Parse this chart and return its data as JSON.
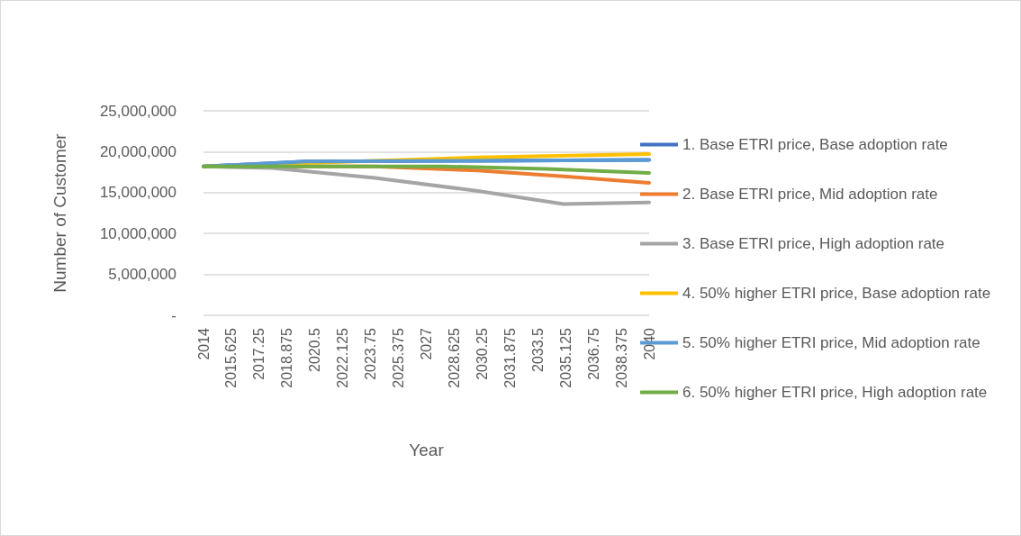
{
  "chart_data": {
    "type": "line",
    "xlabel": "Year",
    "ylabel": "Number of Customer",
    "xlim": [
      2014,
      2040
    ],
    "xticks": [
      2014,
      2015.625,
      2017.25,
      2018.875,
      2020.5,
      2022.125,
      2023.75,
      2025.375,
      2027,
      2028.625,
      2030.25,
      2031.875,
      2033.5,
      2035.125,
      2036.75,
      2038.375,
      2040
    ],
    "ylim": [
      0,
      25000000
    ],
    "yticks": [
      {
        "value": 0,
        "label": "-"
      },
      {
        "value": 5000000,
        "label": "5,000,000"
      },
      {
        "value": 10000000,
        "label": "10,000,000"
      },
      {
        "value": 15000000,
        "label": "15,000,000"
      },
      {
        "value": 20000000,
        "label": "20,000,000"
      },
      {
        "value": 25000000,
        "label": "25,000,000"
      }
    ],
    "grid": "y",
    "legend": "right",
    "marker": "none",
    "line_style": "solid",
    "series": [
      {
        "name": "1. Base ETRI price, Base adoption rate",
        "color": "#4472c4",
        "x": [
          2014,
          2020,
          2030,
          2040
        ],
        "values": [
          18200000,
          18800000,
          18900000,
          19000000
        ]
      },
      {
        "name": "2. Base ETRI price, Mid adoption rate",
        "color": "#ed7d31",
        "x": [
          2014,
          2024,
          2030,
          2035,
          2040
        ],
        "values": [
          18200000,
          18200000,
          17700000,
          17000000,
          16200000
        ]
      },
      {
        "name": "3. Base ETRI price, High adoption rate",
        "color": "#a5a5a5",
        "x": [
          2014,
          2018,
          2024,
          2030,
          2035,
          2040
        ],
        "values": [
          18200000,
          18000000,
          16800000,
          15200000,
          13600000,
          13800000
        ]
      },
      {
        "name": "4. 50% higher ETRI price, Base adoption rate",
        "color": "#ffc000",
        "x": [
          2014,
          2030,
          2040
        ],
        "values": [
          18200000,
          19300000,
          19700000
        ]
      },
      {
        "name": "5. 50% higher ETRI price, Mid adoption rate",
        "color": "#5b9bd5",
        "x": [
          2014,
          2020,
          2030,
          2040
        ],
        "values": [
          18200000,
          18800000,
          18900000,
          19000000
        ]
      },
      {
        "name": "6. 50% higher ETRI price, High adoption rate",
        "color": "#70ad47",
        "x": [
          2014,
          2028,
          2034,
          2040
        ],
        "values": [
          18200000,
          18200000,
          17900000,
          17400000
        ]
      }
    ]
  }
}
